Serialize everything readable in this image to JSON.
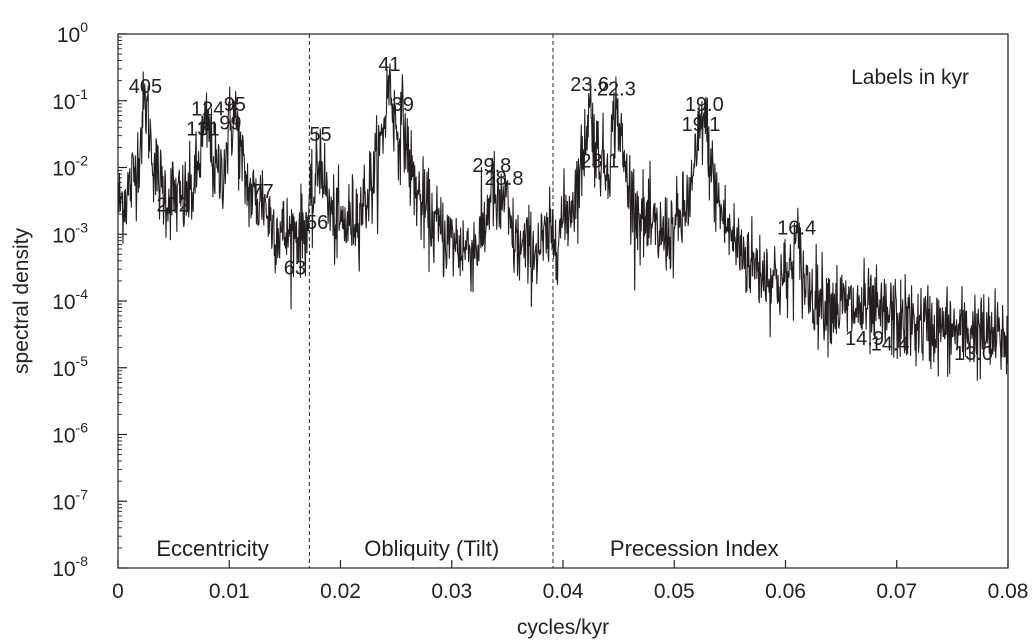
{
  "chart_data": {
    "type": "line",
    "title": "",
    "xlabel": "cycles/kyr",
    "ylabel": "spectral density",
    "xlim": [
      0,
      0.08
    ],
    "ylim_exp": [
      -8,
      0
    ],
    "yscale": "log",
    "grid": false,
    "note": "Labels in kyr",
    "x_ticks": [
      {
        "value": 0,
        "label": "0"
      },
      {
        "value": 0.01,
        "label": "0.01"
      },
      {
        "value": 0.02,
        "label": "0.02"
      },
      {
        "value": 0.03,
        "label": "0.03"
      },
      {
        "value": 0.04,
        "label": "0.04"
      },
      {
        "value": 0.05,
        "label": "0.05"
      },
      {
        "value": 0.06,
        "label": "0.06"
      },
      {
        "value": 0.07,
        "label": "0.07"
      },
      {
        "value": 0.08,
        "label": "0.08"
      }
    ],
    "y_ticks": [
      {
        "exp": 0,
        "base": "10",
        "sup": "0"
      },
      {
        "exp": -1,
        "base": "10",
        "sup": "-1"
      },
      {
        "exp": -2,
        "base": "10",
        "sup": "-2"
      },
      {
        "exp": -3,
        "base": "10",
        "sup": "-3"
      },
      {
        "exp": -4,
        "base": "10",
        "sup": "-4"
      },
      {
        "exp": -5,
        "base": "10",
        "sup": "-5"
      },
      {
        "exp": -6,
        "base": "10",
        "sup": "-6"
      },
      {
        "exp": -7,
        "base": "10",
        "sup": "-7"
      },
      {
        "exp": -8,
        "base": "10",
        "sup": "-8"
      }
    ],
    "dividers": [
      0.0172,
      0.0391
    ],
    "regions": [
      {
        "label": "Eccentricity",
        "x": 0.0085,
        "y": 1.5e-08
      },
      {
        "label": "Obliquity (Tilt)",
        "x": 0.0282,
        "y": 1.5e-08
      },
      {
        "label": "Precession Index",
        "x": 0.0518,
        "y": 1.5e-08
      }
    ],
    "peaks": [
      {
        "label": "405",
        "x": 0.00247,
        "y": 0.09,
        "ly": 0.13
      },
      {
        "label": "202",
        "x": 0.00495,
        "y": 0.0009,
        "ly": 0.0022
      },
      {
        "label": "131",
        "x": 0.00763,
        "y": 0.016,
        "ly": 0.03
      },
      {
        "label": "124",
        "x": 0.00806,
        "y": 0.033,
        "ly": 0.06
      },
      {
        "label": "99",
        "x": 0.0101,
        "y": 0.025,
        "ly": 0.037
      },
      {
        "label": "95",
        "x": 0.0105,
        "y": 0.05,
        "ly": 0.07
      },
      {
        "label": "77",
        "x": 0.013,
        "y": 0.0018,
        "ly": 0.0035
      },
      {
        "label": "63",
        "x": 0.0159,
        "y": 0.00015,
        "ly": 0.00025
      },
      {
        "label": "56",
        "x": 0.0179,
        "y": 0.0006,
        "ly": 0.0012
      },
      {
        "label": "55",
        "x": 0.0182,
        "y": 0.015,
        "ly": 0.025
      },
      {
        "label": "41",
        "x": 0.0244,
        "y": 0.18,
        "ly": 0.28
      },
      {
        "label": "39",
        "x": 0.0256,
        "y": 0.04,
        "ly": 0.07
      },
      {
        "label": "29.8",
        "x": 0.0336,
        "y": 0.0048,
        "ly": 0.0085
      },
      {
        "label": "28.8",
        "x": 0.0347,
        "y": 0.0033,
        "ly": 0.0055
      },
      {
        "label": "23.6",
        "x": 0.0424,
        "y": 0.08,
        "ly": 0.14
      },
      {
        "label": "23.1",
        "x": 0.0433,
        "y": 0.0065,
        "ly": 0.01
      },
      {
        "label": "22.3",
        "x": 0.0448,
        "y": 0.075,
        "ly": 0.12
      },
      {
        "label": "19.1",
        "x": 0.0524,
        "y": 0.022,
        "ly": 0.035
      },
      {
        "label": "19.0",
        "x": 0.0527,
        "y": 0.045,
        "ly": 0.07
      },
      {
        "label": "16.4",
        "x": 0.061,
        "y": 0.0006,
        "ly": 0.001
      },
      {
        "label": "14.9",
        "x": 0.0671,
        "y": 1.2e-05,
        "ly": 2.2e-05
      },
      {
        "label": "14.4",
        "x": 0.0694,
        "y": 9e-06,
        "ly": 1.8e-05
      },
      {
        "label": "13.0",
        "x": 0.0769,
        "y": 7e-06,
        "ly": 1.3e-05
      }
    ]
  }
}
